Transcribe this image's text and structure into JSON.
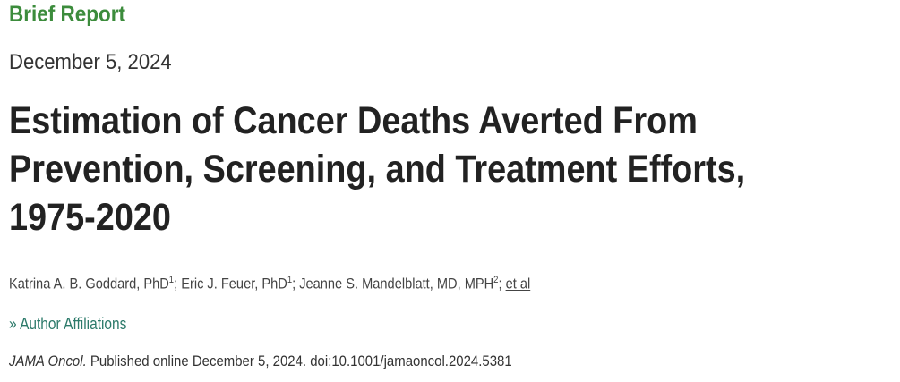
{
  "article_type": "Brief Report",
  "date": "December 5, 2024",
  "title_lines": [
    "Estimation of Cancer Deaths Averted From",
    "Prevention, Screening, and Treatment Efforts,",
    "1975-2020"
  ],
  "authors": [
    {
      "name": "Katrina A. B. Goddard, PhD",
      "aff": "1"
    },
    {
      "name": "Eric J. Feuer, PhD",
      "aff": "1"
    },
    {
      "name": "Jeanne S. Mandelblatt, MD, MPH",
      "aff": "2"
    }
  ],
  "et_al": "et al",
  "affiliations_label": "Author Affiliations",
  "affiliations_icon": "double-chevron-right-icon",
  "citation": {
    "journal": "JAMA Oncol.",
    "text": " Published online December 5, 2024. doi:10.1001/jamaoncol.2024.5381"
  },
  "colors": {
    "article_type": "#3c8c3c",
    "link": "#2c7a6a"
  }
}
